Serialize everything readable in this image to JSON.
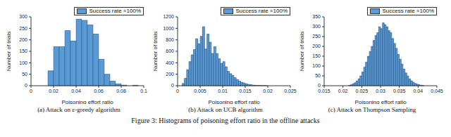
{
  "figure_caption": "Figure 3: Histograms of poisoning effort ratio in the offline attacks",
  "chart_data": [
    {
      "type": "histogram",
      "title": "(a) Attack on ε-greedy algorithm",
      "x_label": "Poisoning effort ratio",
      "y_label": "Number of trials",
      "bins": [
        0.015,
        0.02,
        0.025,
        0.03,
        0.035,
        0.04,
        0.045,
        0.05,
        0.055,
        0.06,
        0.065,
        0.07,
        0.075,
        0.08,
        0.085,
        0.09,
        0.095
      ],
      "series": [
        {
          "name": "Success rate =100%",
          "color": "#5b9bd5",
          "values": [
            65,
            170,
            170,
            240,
            195,
            290,
            285,
            265,
            225,
            115,
            50,
            20,
            8,
            3,
            0,
            2
          ]
        }
      ],
      "xlim": [
        0,
        0.1
      ],
      "ylim": [
        0,
        300
      ],
      "xticks": [
        0,
        0.02,
        0.04,
        0.06,
        0.08,
        0.1
      ],
      "yticks": [
        0,
        50,
        100,
        150,
        200,
        250,
        300
      ],
      "legend": "upper right",
      "grid": false
    },
    {
      "type": "histogram",
      "title": "(b) Attack on UCB algorithm",
      "x_label": "Poisoning effort ratio",
      "y_label": "Number of trials",
      "bins": [
        0.001,
        0.0015,
        0.002,
        0.0025,
        0.003,
        0.0035,
        0.004,
        0.0045,
        0.005,
        0.0055,
        0.006,
        0.0065,
        0.007,
        0.0075,
        0.008,
        0.0085,
        0.009,
        0.0095,
        0.01,
        0.0105,
        0.011,
        0.0115,
        0.012,
        0.0125,
        0.013,
        0.0135,
        0.014,
        0.0145,
        0.015,
        0.0155,
        0.016,
        0.0165,
        0.017,
        0.0175,
        0.018,
        0.0185,
        0.019,
        0.0195,
        0.02
      ],
      "series": [
        {
          "name": "Success rate =100%",
          "color": "#5b9bd5",
          "values": [
            40,
            130,
            280,
            420,
            540,
            630,
            820,
            730,
            860,
            1030,
            640,
            900,
            760,
            560,
            680,
            560,
            470,
            390,
            420,
            330,
            250,
            210,
            180,
            140,
            110,
            80,
            60,
            50,
            35,
            25,
            18,
            12,
            8,
            5,
            4,
            2,
            2,
            1
          ]
        }
      ],
      "xlim": [
        0,
        0.025
      ],
      "ylim": [
        0,
        1200
      ],
      "xticks": [
        0,
        0.005,
        0.01,
        0.015,
        0.02,
        0.025
      ],
      "yticks": [
        0,
        200,
        400,
        600,
        800,
        1000,
        1200
      ],
      "legend": "upper right",
      "grid": false
    },
    {
      "type": "histogram",
      "title": "(c) Attack on Thompson Sampling",
      "x_label": "Poisoning effort ratio",
      "y_label": "Number of trials",
      "bins": [
        0.0215,
        0.022,
        0.0225,
        0.023,
        0.0235,
        0.024,
        0.0245,
        0.025,
        0.0255,
        0.026,
        0.0265,
        0.027,
        0.0275,
        0.028,
        0.0285,
        0.029,
        0.0295,
        0.03,
        0.0305,
        0.031,
        0.0315,
        0.032,
        0.0325,
        0.033,
        0.0335,
        0.034,
        0.0345,
        0.035,
        0.0355,
        0.036,
        0.0365,
        0.037,
        0.0375,
        0.038,
        0.0385,
        0.039,
        0.0395,
        0.04,
        0.0405,
        0.041,
        0.0415
      ],
      "series": [
        {
          "name": "Success rate =100%",
          "color": "#5b9bd5",
          "values": [
            2,
            5,
            10,
            15,
            25,
            35,
            50,
            70,
            95,
            120,
            150,
            175,
            200,
            230,
            255,
            270,
            300,
            290,
            320,
            310,
            300,
            280,
            270,
            240,
            215,
            190,
            160,
            135,
            110,
            85,
            65,
            50,
            35,
            25,
            18,
            12,
            8,
            5,
            3,
            2
          ]
        }
      ],
      "xlim": [
        0.015,
        0.045
      ],
      "ylim": [
        0,
        350
      ],
      "xticks": [
        0.015,
        0.02,
        0.025,
        0.03,
        0.035,
        0.04,
        0.045
      ],
      "yticks": [
        0,
        50,
        100,
        150,
        200,
        250,
        300,
        350
      ],
      "legend": "upper right",
      "grid": false
    }
  ]
}
